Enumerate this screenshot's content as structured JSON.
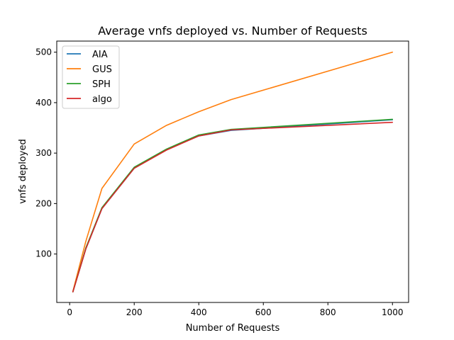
{
  "chart_data": {
    "type": "line",
    "title": "Average vnfs deployed vs. Number of Requests",
    "xlabel": "Number of Requests",
    "ylabel": "vnfs deployed",
    "xlim": [
      -40,
      1050
    ],
    "ylim": [
      4,
      522
    ],
    "xticks": [
      0,
      200,
      400,
      600,
      800,
      1000
    ],
    "yticks": [
      100,
      200,
      300,
      400,
      500
    ],
    "legend_position": "top-left",
    "x": [
      10,
      50,
      100,
      200,
      300,
      400,
      500,
      1000
    ],
    "series": [
      {
        "name": "AIA",
        "color": "#1f77b4",
        "values": [
          25,
          110,
          190,
          270,
          307,
          334,
          345,
          366
        ]
      },
      {
        "name": "GUS",
        "color": "#ff7f0e",
        "values": [
          26,
          125,
          230,
          318,
          355,
          382,
          406,
          500
        ]
      },
      {
        "name": "SPH",
        "color": "#2ca02c",
        "values": [
          25,
          112,
          192,
          272,
          308,
          336,
          347,
          367
        ]
      },
      {
        "name": "algo",
        "color": "#d62728",
        "values": [
          25,
          110,
          190,
          270,
          306,
          334,
          346,
          361
        ]
      }
    ]
  }
}
